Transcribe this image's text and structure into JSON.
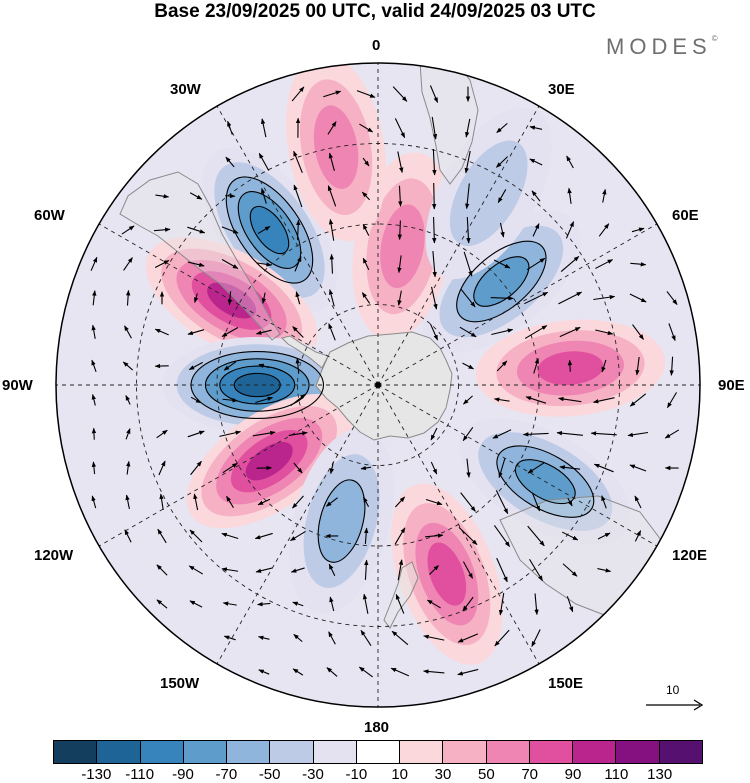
{
  "header": {
    "title": "Base 23/09/2025 00 UTC, valid 24/09/2025 03 UTC",
    "brand": "MODES",
    "brand_mark": "©"
  },
  "map": {
    "projection": "south polar stereographic",
    "longitude_labels": {
      "top": "0",
      "top_right": "30E",
      "upper_right": "60E",
      "right": "90E",
      "lower_right": "120E",
      "bottom_right": "150E",
      "bottom": "180",
      "bottom_left": "150W",
      "lower_left": "120W",
      "left": "90W",
      "upper_left": "60W",
      "top_left": "30W"
    },
    "reference_vector": {
      "label": "10"
    },
    "anomaly_centers": [
      {
        "sign": "negative",
        "lon": -35,
        "colat": 47,
        "magnitude": -90
      },
      {
        "sign": "positive",
        "lon": -60,
        "colat": 42,
        "magnitude": 95
      },
      {
        "sign": "negative",
        "lon": -90,
        "colat": 30,
        "magnitude": -125
      },
      {
        "sign": "positive",
        "lon": -125,
        "colat": 33,
        "magnitude": 100
      },
      {
        "sign": "negative",
        "lon": -165,
        "colat": 35,
        "magnitude": -55
      },
      {
        "sign": "positive",
        "lon": 160,
        "colat": 50,
        "magnitude": 85
      },
      {
        "sign": "negative",
        "lon": 120,
        "colat": 48,
        "magnitude": -85
      },
      {
        "sign": "positive",
        "lon": 85,
        "colat": 48,
        "magnitude": 80
      },
      {
        "sign": "negative",
        "lon": 50,
        "colat": 40,
        "magnitude": -75
      },
      {
        "sign": "positive",
        "lon": 10,
        "colat": 35,
        "magnitude": 55
      },
      {
        "sign": "negative",
        "lon": 30,
        "colat": 55,
        "magnitude": -45
      },
      {
        "sign": "positive",
        "lon": -10,
        "colat": 60,
        "magnitude": 65
      }
    ]
  },
  "colorbar": {
    "tick_labels": [
      "-130",
      "-110",
      "-90",
      "-70",
      "-50",
      "-30",
      "-10",
      "10",
      "30",
      "50",
      "70",
      "90",
      "110",
      "130"
    ],
    "colors": [
      "#143e5e",
      "#1f6496",
      "#3784bd",
      "#5e9ccb",
      "#8fb5dc",
      "#bdcbe6",
      "#e4e2f1",
      "#ffffff",
      "#fbd8dc",
      "#f6b1c5",
      "#ef85b2",
      "#e0509f",
      "#b9248d",
      "#851180",
      "#551070"
    ]
  }
}
